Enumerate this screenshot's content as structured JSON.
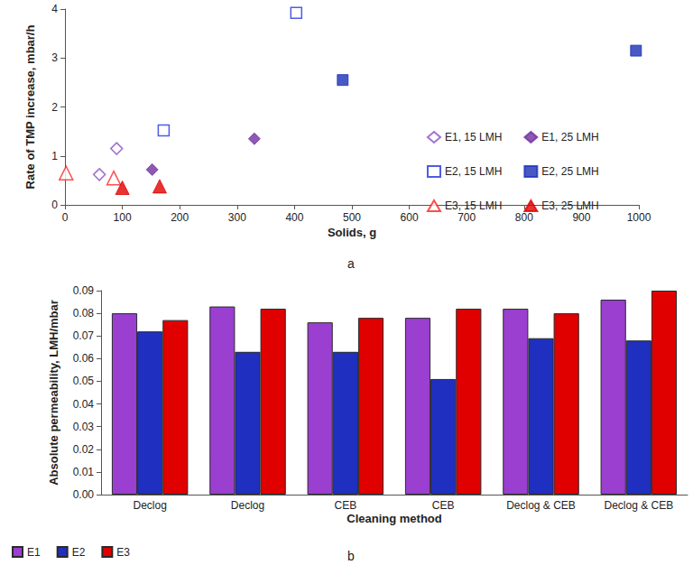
{
  "chart_data": [
    {
      "type": "scatter",
      "caption": "a",
      "x_label": "Solids, g",
      "y_label": "Rate of TMP increase, mbar/h",
      "xlim": [
        0,
        1000
      ],
      "xticks": [
        0,
        100,
        200,
        300,
        400,
        500,
        600,
        700,
        800,
        900,
        1000
      ],
      "ylim": [
        0,
        4
      ],
      "yticks": [
        0,
        1,
        2,
        3,
        4
      ],
      "grid": false,
      "legend": "right",
      "series": [
        {
          "name": "E1, 15 LMH",
          "color": "#8a4fc4",
          "marker": "diamond-open",
          "x": [
            60,
            90
          ],
          "values": [
            0.62,
            1.15
          ]
        },
        {
          "name": "E1, 25 LMH",
          "color": "#7030a0",
          "marker": "diamond-filled",
          "x": [
            152,
            330
          ],
          "values": [
            0.72,
            1.35
          ]
        },
        {
          "name": "E2, 15 LMH",
          "color": "#2233dd",
          "marker": "rect-open",
          "x": [
            172,
            403
          ],
          "values": [
            1.52,
            3.92
          ]
        },
        {
          "name": "E2, 25 LMH",
          "color": "#1a2fb8",
          "marker": "rect-filled",
          "x": [
            484,
            995
          ],
          "values": [
            2.55,
            3.15
          ]
        },
        {
          "name": "E3, 15 LMH",
          "color": "#ff2020",
          "marker": "triangle-open",
          "x": [
            2,
            85
          ],
          "values": [
            0.65,
            0.55
          ]
        },
        {
          "name": "E3, 25 LMH",
          "color": "#e00000",
          "marker": "triangle-filled",
          "x": [
            100,
            165
          ],
          "values": [
            0.35,
            0.38
          ]
        }
      ]
    },
    {
      "type": "bar",
      "caption": "b",
      "x_label": "Cleaning method",
      "y_label": "Absolute permeability, LMH/mbar",
      "categories": [
        "Declog",
        "Declog",
        "CEB",
        "CEB",
        "Declog & CEB",
        "Declog & CEB"
      ],
      "ylim": [
        0,
        0.09
      ],
      "yticks": [
        {
          "value": 0,
          "label": "0.00"
        },
        0.01,
        0.02,
        0.03,
        0.04,
        0.05,
        0.06,
        0.07,
        0.08,
        0.09
      ],
      "grid": false,
      "legend": "lower-left",
      "series": [
        {
          "name": "E1",
          "color": "#9a3fd0",
          "values": [
            0.08,
            0.083,
            0.076,
            0.078,
            0.082,
            0.086
          ]
        },
        {
          "name": "E2",
          "color": "#1f2fbf",
          "values": [
            0.072,
            0.063,
            0.063,
            0.051,
            0.069,
            0.068
          ]
        },
        {
          "name": "E3",
          "color": "#e00000",
          "values": [
            0.077,
            0.082,
            0.078,
            0.082,
            0.08,
            0.09
          ]
        }
      ]
    }
  ]
}
